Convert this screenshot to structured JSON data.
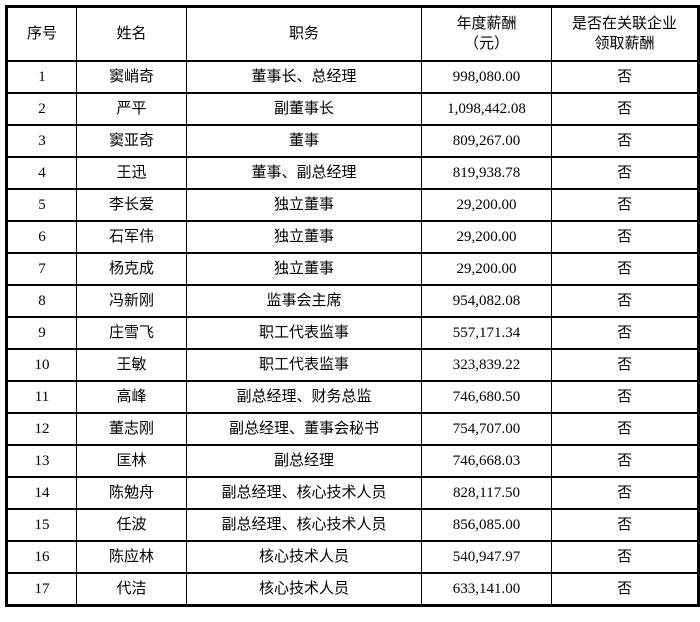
{
  "table": {
    "headers": {
      "no": "序号",
      "name": "姓名",
      "position": "职务",
      "salary": "年度薪酬\n（元）",
      "related": "是否在关联企业\n领取薪酬"
    },
    "rows": [
      {
        "no": "1",
        "name": "窦峭奇",
        "position": "董事长、总经理",
        "salary": "998,080.00",
        "related": "否"
      },
      {
        "no": "2",
        "name": "严平",
        "position": "副董事长",
        "salary": "1,098,442.08",
        "related": "否"
      },
      {
        "no": "3",
        "name": "窦亚奇",
        "position": "董事",
        "salary": "809,267.00",
        "related": "否"
      },
      {
        "no": "4",
        "name": "王迅",
        "position": "董事、副总经理",
        "salary": "819,938.78",
        "related": "否"
      },
      {
        "no": "5",
        "name": "李长爱",
        "position": "独立董事",
        "salary": "29,200.00",
        "related": "否"
      },
      {
        "no": "6",
        "name": "石军伟",
        "position": "独立董事",
        "salary": "29,200.00",
        "related": "否"
      },
      {
        "no": "7",
        "name": "杨克成",
        "position": "独立董事",
        "salary": "29,200.00",
        "related": "否"
      },
      {
        "no": "8",
        "name": "冯新刚",
        "position": "监事会主席",
        "salary": "954,082.08",
        "related": "否"
      },
      {
        "no": "9",
        "name": "庄雪飞",
        "position": "职工代表监事",
        "salary": "557,171.34",
        "related": "否"
      },
      {
        "no": "10",
        "name": "王敏",
        "position": "职工代表监事",
        "salary": "323,839.22",
        "related": "否"
      },
      {
        "no": "11",
        "name": "高峰",
        "position": "副总经理、财务总监",
        "salary": "746,680.50",
        "related": "否"
      },
      {
        "no": "12",
        "name": "董志刚",
        "position": "副总经理、董事会秘书",
        "salary": "754,707.00",
        "related": "否"
      },
      {
        "no": "13",
        "name": "匡林",
        "position": "副总经理",
        "salary": "746,668.03",
        "related": "否"
      },
      {
        "no": "14",
        "name": "陈勉舟",
        "position": "副总经理、核心技术人员",
        "salary": "828,117.50",
        "related": "否"
      },
      {
        "no": "15",
        "name": "任波",
        "position": "副总经理、核心技术人员",
        "salary": "856,085.00",
        "related": "否"
      },
      {
        "no": "16",
        "name": "陈应林",
        "position": "核心技术人员",
        "salary": "540,947.97",
        "related": "否"
      },
      {
        "no": "17",
        "name": "代洁",
        "position": "核心技术人员",
        "salary": "633,141.00",
        "related": "否"
      }
    ]
  }
}
